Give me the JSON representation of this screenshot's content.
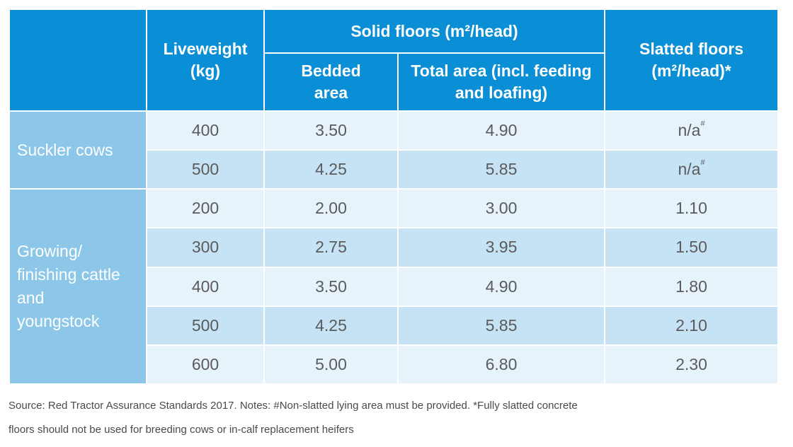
{
  "header": {
    "liveweight": "Liveweight (kg)",
    "solid_floors": "Solid floors (m²/head)",
    "bedded_area": "Bedded area",
    "total_area": "Total area (incl. feeding and loafing)",
    "slatted_floors": "Slatted floors (m²/head)*"
  },
  "groups": [
    {
      "name": "Suckler cows",
      "rows": [
        {
          "liveweight": "400",
          "bedded": "3.50",
          "total": "4.90",
          "slatted": "n/a",
          "slatted_mark": "#"
        },
        {
          "liveweight": "500",
          "bedded": "4.25",
          "total": "5.85",
          "slatted": "n/a",
          "slatted_mark": "#"
        }
      ]
    },
    {
      "name": "Growing/ finishing cattle and youngstock",
      "rows": [
        {
          "liveweight": "200",
          "bedded": "2.00",
          "total": "3.00",
          "slatted": "1.10"
        },
        {
          "liveweight": "300",
          "bedded": "2.75",
          "total": "3.95",
          "slatted": "1.50"
        },
        {
          "liveweight": "400",
          "bedded": "3.50",
          "total": "4.90",
          "slatted": "1.80"
        },
        {
          "liveweight": "500",
          "bedded": "4.25",
          "total": "5.85",
          "slatted": "2.10"
        },
        {
          "liveweight": "600",
          "bedded": "5.00",
          "total": "6.80",
          "slatted": "2.30"
        }
      ]
    }
  ],
  "note": {
    "line1": "Source: Red Tractor Assurance Standards 2017. Notes: #Non-slatted lying area must be provided. *Fully slatted concrete",
    "line2": "floors should not be used for breeding cows or in-calf replacement heifers"
  },
  "colors": {
    "header_bg": "#0a8fd6",
    "category_bg": "#8cc7ea",
    "row_light": "#e6f3fb",
    "row_dark": "#c6e2f5"
  }
}
